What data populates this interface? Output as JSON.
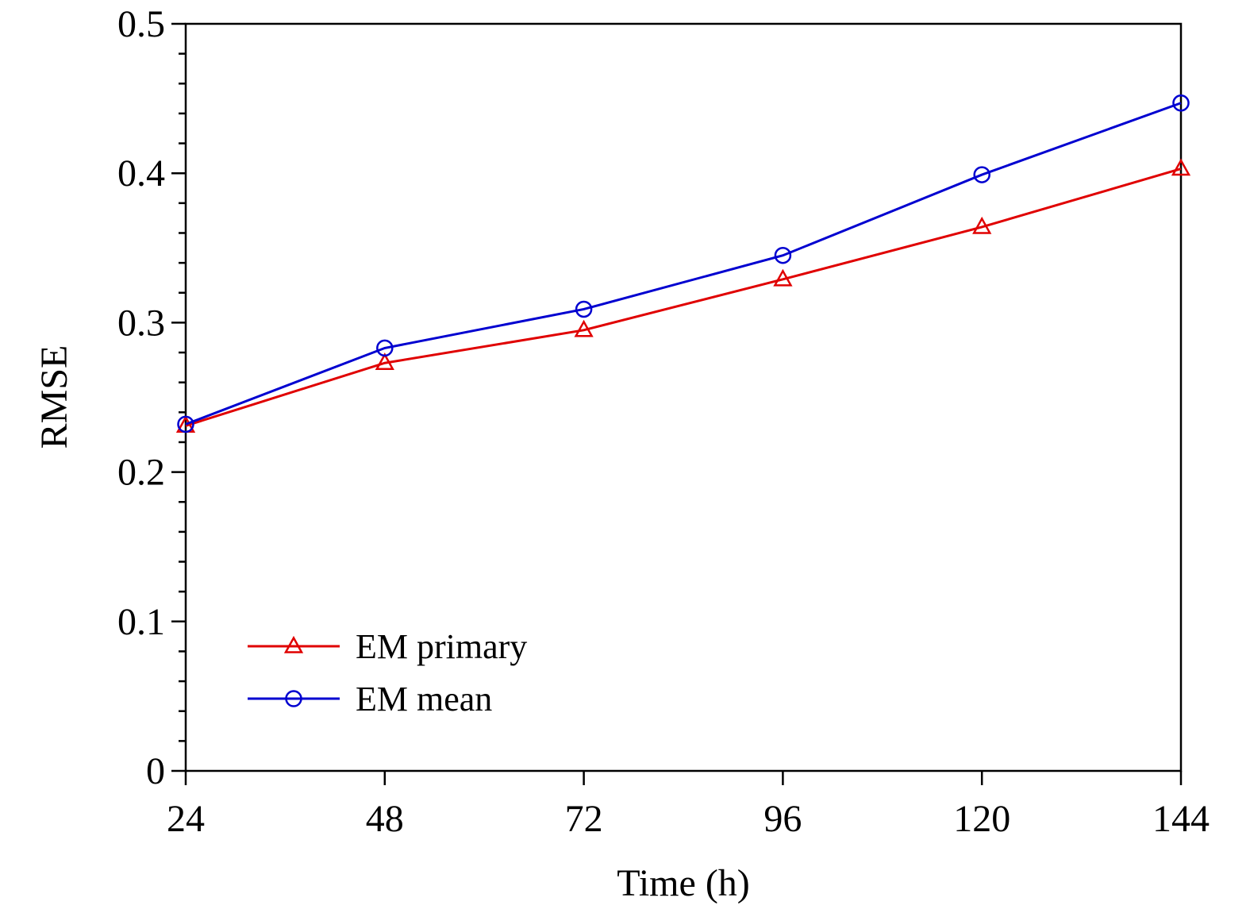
{
  "chart_data": {
    "type": "line",
    "title": "",
    "xlabel": "Time (h)",
    "ylabel": "RMSE",
    "x": [
      24,
      48,
      72,
      96,
      120,
      144
    ],
    "x_tick_labels": [
      "24",
      "48",
      "72",
      "96",
      "120",
      "144"
    ],
    "y_tick_labels": [
      "0",
      "0.1",
      "0.2",
      "0.3",
      "0.4",
      "0.5"
    ],
    "xlim": [
      24,
      144
    ],
    "ylim": [
      0,
      0.5
    ],
    "y_major_step": 0.1,
    "y_minor_step": 0.02,
    "grid": false,
    "legend_position": "bottom-left",
    "series": [
      {
        "name": "EM primary",
        "color": "#e00000",
        "marker": "triangle",
        "values": [
          0.231,
          0.273,
          0.295,
          0.329,
          0.364,
          0.403
        ]
      },
      {
        "name": "EM mean",
        "color": "#0000d0",
        "marker": "circle",
        "values": [
          0.232,
          0.283,
          0.309,
          0.345,
          0.399,
          0.447
        ]
      }
    ]
  }
}
